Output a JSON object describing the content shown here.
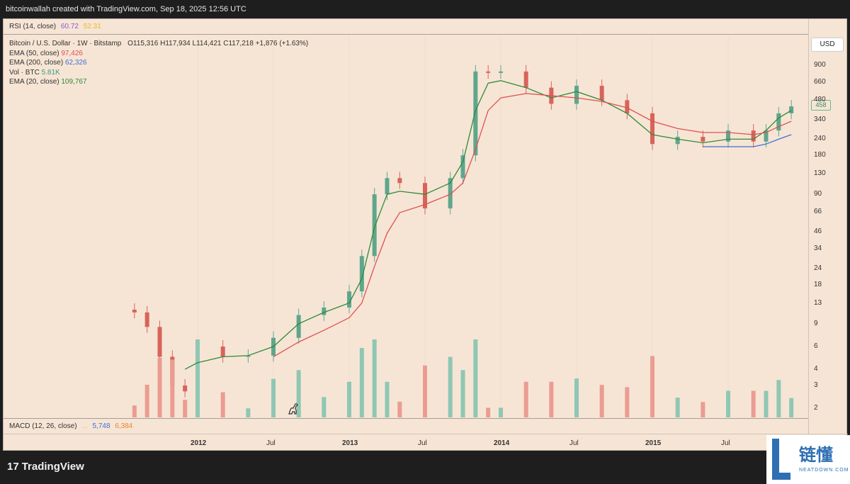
{
  "header": {
    "attribution": "bitcoinwallah created with TradingView.com, Sep 18, 2025 12:56 UTC"
  },
  "rsi": {
    "label": "RSI (14, close)",
    "v1": "60.72",
    "v2": "52.31"
  },
  "legend": {
    "title": "Bitcoin / U.S. Dollar · 1W · Bitstamp",
    "ohlc": "O115,316  H117,934  L114,421  C117,218  +1,876 (+1.63%)",
    "ema50_label": "EMA (50, close)",
    "ema50_value": "97,426",
    "ema200_label": "EMA (200, close)",
    "ema200_value": "62,326",
    "vol_label": "Vol · BTC",
    "vol_value": "5.81K",
    "ema20_label": "EMA (20, close)",
    "ema20_value": "109,767"
  },
  "macd": {
    "label": "MACD (12, 26, close)",
    "v1": "...",
    "v2": "5,748",
    "v3": "6,384"
  },
  "axis": {
    "currency": "USD",
    "last_price": "458"
  },
  "brand": {
    "name": "TradingView",
    "mark": "17"
  },
  "watermark": {
    "cn": "链懂",
    "en": "NEATDOWN.COM"
  },
  "colors": {
    "up": "#5fa68d",
    "down": "#d9635a",
    "ema50": "#e05050",
    "ema200": "#3d6fd8",
    "ema20": "#2f8a3a",
    "rsi": "#8e5bd0",
    "rsi2": "#e8b923",
    "macd1": "#3d6fd8",
    "macd2": "#e8862a"
  },
  "chart_data": {
    "type": "line",
    "title": "Bitcoin / U.S. Dollar · 1W · Bitstamp",
    "yscale": "log",
    "ylim": [
      1.7,
      1500
    ],
    "y_ticks": [
      "900",
      "660",
      "480",
      "340",
      "240",
      "180",
      "130",
      "90",
      "66",
      "46",
      "34",
      "24",
      "18",
      "13",
      "9",
      "6",
      "4",
      "3",
      "2"
    ],
    "x_ticks": [
      "2012",
      "Jul",
      "2013",
      "Jul",
      "2014",
      "Jul",
      "2015",
      "Jul"
    ],
    "x": [
      "2011-08",
      "2011-09",
      "2011-10",
      "2011-11",
      "2011-12",
      "2012-01",
      "2012-03",
      "2012-05",
      "2012-07",
      "2012-09",
      "2012-11",
      "2013-01",
      "2013-02",
      "2013-03",
      "2013-04",
      "2013-05",
      "2013-07",
      "2013-09",
      "2013-10",
      "2013-11",
      "2013-12",
      "2014-01",
      "2014-03",
      "2014-05",
      "2014-07",
      "2014-09",
      "2014-11",
      "2015-01",
      "2015-03",
      "2015-05",
      "2015-07",
      "2015-09",
      "2015-10",
      "2015-11",
      "2015-12"
    ],
    "series": [
      {
        "role": "close",
        "values": [
          11,
          8.5,
          5,
          3,
          2.7,
          6,
          5,
          5.1,
          7,
          10.5,
          12,
          16,
          30,
          90,
          120,
          110,
          70,
          120,
          180,
          800,
          780,
          800,
          600,
          450,
          620,
          480,
          380,
          220,
          250,
          230,
          280,
          230,
          280,
          380,
          430
        ]
      },
      {
        "name": "EMA (20, close)",
        "values": [
          null,
          null,
          null,
          null,
          4,
          4.5,
          5,
          5.1,
          6,
          9,
          11,
          13,
          20,
          50,
          90,
          95,
          90,
          110,
          160,
          400,
          650,
          680,
          600,
          500,
          560,
          480,
          380,
          260,
          240,
          225,
          240,
          240,
          280,
          350,
          400
        ]
      },
      {
        "name": "EMA (50, close)",
        "values": [
          null,
          null,
          null,
          null,
          null,
          null,
          null,
          null,
          5,
          6.5,
          8,
          10,
          13,
          25,
          45,
          65,
          75,
          90,
          110,
          200,
          400,
          500,
          540,
          520,
          500,
          470,
          420,
          330,
          290,
          270,
          270,
          260,
          270,
          300,
          330
        ]
      },
      {
        "name": "EMA (200, close)",
        "values": [
          null,
          null,
          null,
          null,
          null,
          null,
          null,
          null,
          null,
          null,
          null,
          null,
          null,
          null,
          null,
          null,
          null,
          null,
          null,
          null,
          null,
          null,
          null,
          null,
          null,
          null,
          null,
          null,
          null,
          210,
          210,
          210,
          220,
          240,
          260
        ]
      }
    ]
  }
}
